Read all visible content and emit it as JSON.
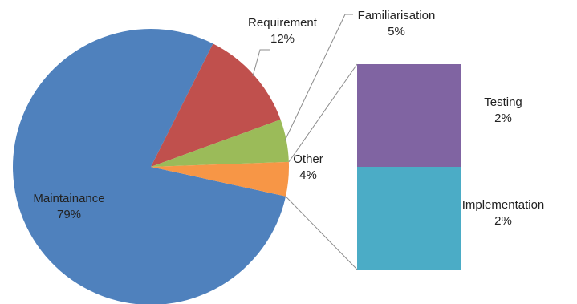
{
  "chart_data": {
    "type": "pie",
    "subtype": "bar-of-pie",
    "slices": [
      {
        "name": "Maintainance",
        "value": 79,
        "label": "79%",
        "color": "#4f81bd"
      },
      {
        "name": "Requirement",
        "value": 12,
        "label": "12%",
        "color": "#c0504d"
      },
      {
        "name": "Familiarisation",
        "value": 5,
        "label": "5%",
        "color": "#9bbb59"
      },
      {
        "name": "Other",
        "value": 4,
        "label": "4%",
        "color": "#f79646"
      }
    ],
    "breakdown_of": "Other",
    "breakdown": [
      {
        "name": "Testing",
        "value": 2,
        "label": "2%",
        "color": "#8064a2"
      },
      {
        "name": "Implementation",
        "value": 2,
        "label": "2%",
        "color": "#4bacc6"
      }
    ],
    "legend": "none"
  }
}
